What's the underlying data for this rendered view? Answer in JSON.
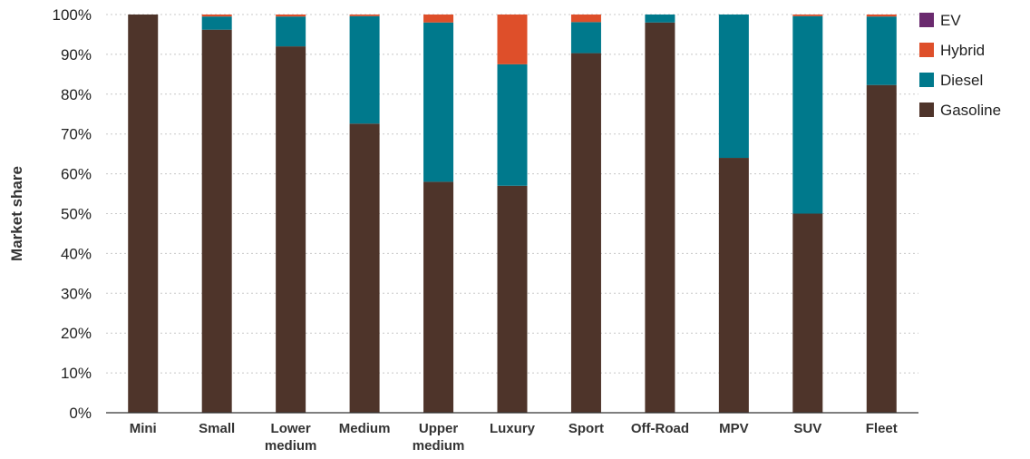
{
  "chart_data": {
    "type": "bar",
    "stacked": true,
    "categories": [
      [
        "Mini"
      ],
      [
        "Small"
      ],
      [
        "Lower",
        "medium"
      ],
      [
        "Medium"
      ],
      [
        "Upper",
        "medium"
      ],
      [
        "Luxury"
      ],
      [
        "Sport"
      ],
      [
        "Off-Road"
      ],
      [
        "MPV"
      ],
      [
        "SUV"
      ],
      [
        "Fleet"
      ]
    ],
    "series": [
      {
        "name": "Gasoline",
        "color": "#4e342a",
        "values": [
          100,
          96.2,
          92,
          72.6,
          58,
          57,
          90.3,
          98,
          64,
          50,
          82.3
        ]
      },
      {
        "name": "Diesel",
        "color": "#00798c",
        "values": [
          0,
          3.3,
          7.5,
          27,
          40,
          30.5,
          7.8,
          2,
          36,
          49.6,
          17.2
        ]
      },
      {
        "name": "Hybrid",
        "color": "#de4f2a",
        "values": [
          0,
          0.5,
          0.5,
          0.4,
          2,
          12.5,
          1.9,
          0,
          0,
          0.4,
          0.5
        ]
      },
      {
        "name": "EV",
        "color": "#6a2a6e",
        "values": [
          0,
          0,
          0,
          0,
          0,
          0,
          0,
          0,
          0,
          0,
          0
        ]
      }
    ],
    "legend_order": [
      "EV",
      "Hybrid",
      "Diesel",
      "Gasoline"
    ],
    "legend_position": "right",
    "ylabel": "Market share",
    "xlabel": "",
    "title": "",
    "yticks": [
      "0%",
      "10%",
      "20%",
      "30%",
      "40%",
      "50%",
      "60%",
      "70%",
      "80%",
      "90%",
      "100%"
    ],
    "ylim": [
      0,
      100
    ],
    "grid": true
  }
}
